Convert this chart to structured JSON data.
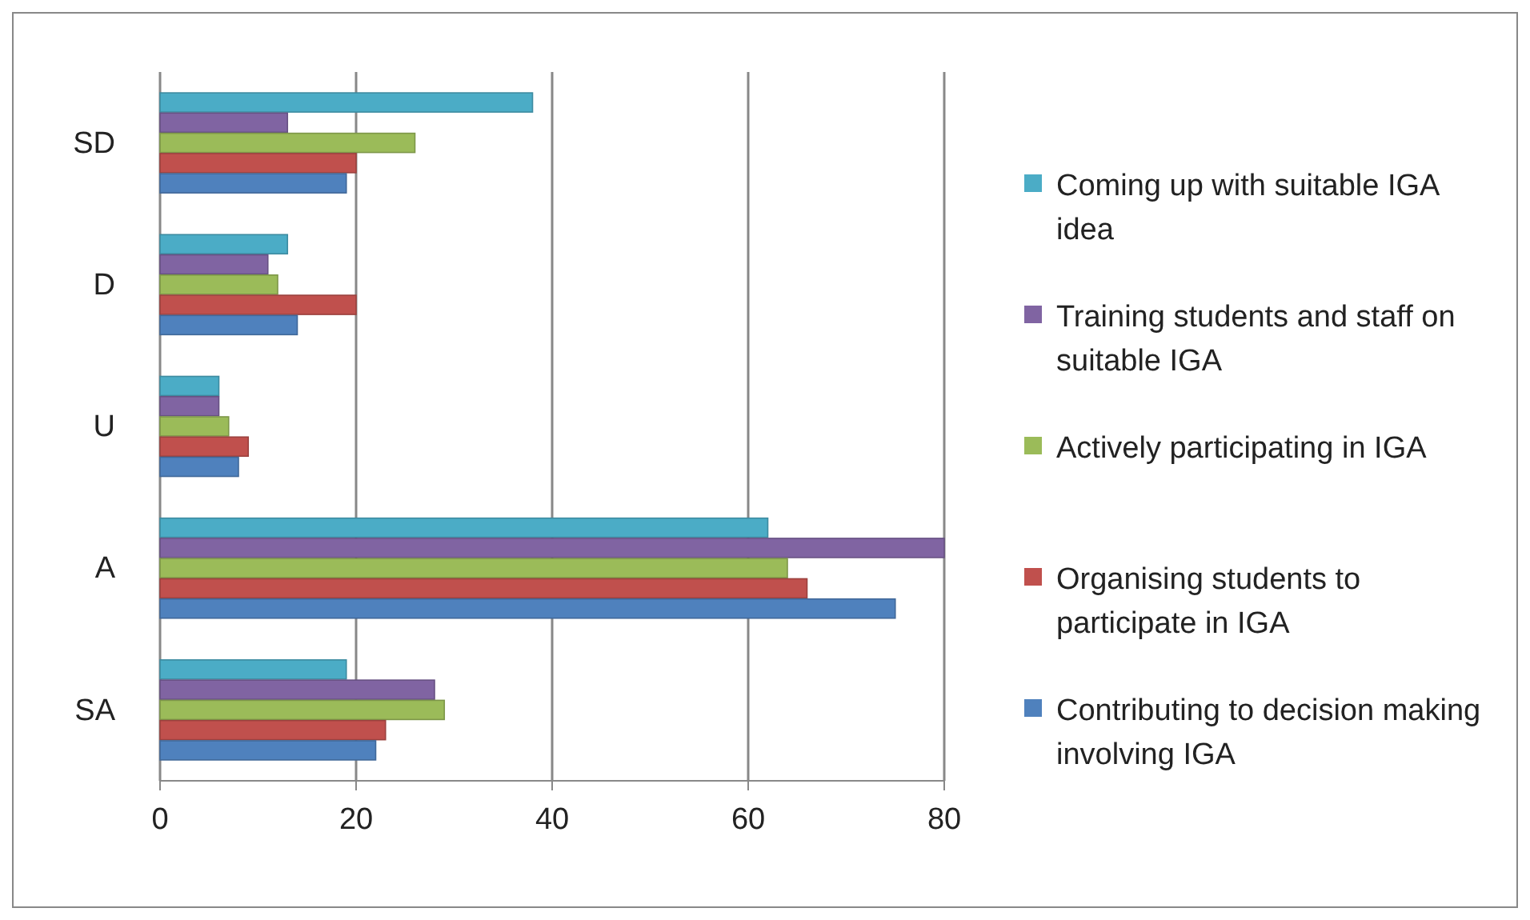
{
  "chart_data": {
    "type": "bar",
    "orientation": "horizontal",
    "categories": [
      "SD",
      "D",
      "U",
      "A",
      "SA"
    ],
    "series": [
      {
        "name": "Coming up with suitable IGA idea",
        "color": "#4bacc6",
        "values": [
          38,
          13,
          6,
          62,
          19
        ]
      },
      {
        "name": "Training students and staff on suitable IGA",
        "color": "#8064a2",
        "values": [
          13,
          11,
          6,
          80,
          28
        ]
      },
      {
        "name": "Actively participating in IGA",
        "color": "#9bbb59",
        "values": [
          26,
          12,
          7,
          64,
          29
        ]
      },
      {
        "name": "Organising students to participate in IGA",
        "color": "#c0504d",
        "values": [
          20,
          20,
          9,
          66,
          23
        ]
      },
      {
        "name": "Contributing to decision making involving IGA",
        "color": "#4f81bd",
        "values": [
          19,
          14,
          8,
          75,
          22
        ]
      }
    ],
    "xlim": [
      0,
      80
    ],
    "xticks": [
      0,
      20,
      40,
      60,
      80
    ],
    "grid": "x",
    "legend": "right"
  }
}
